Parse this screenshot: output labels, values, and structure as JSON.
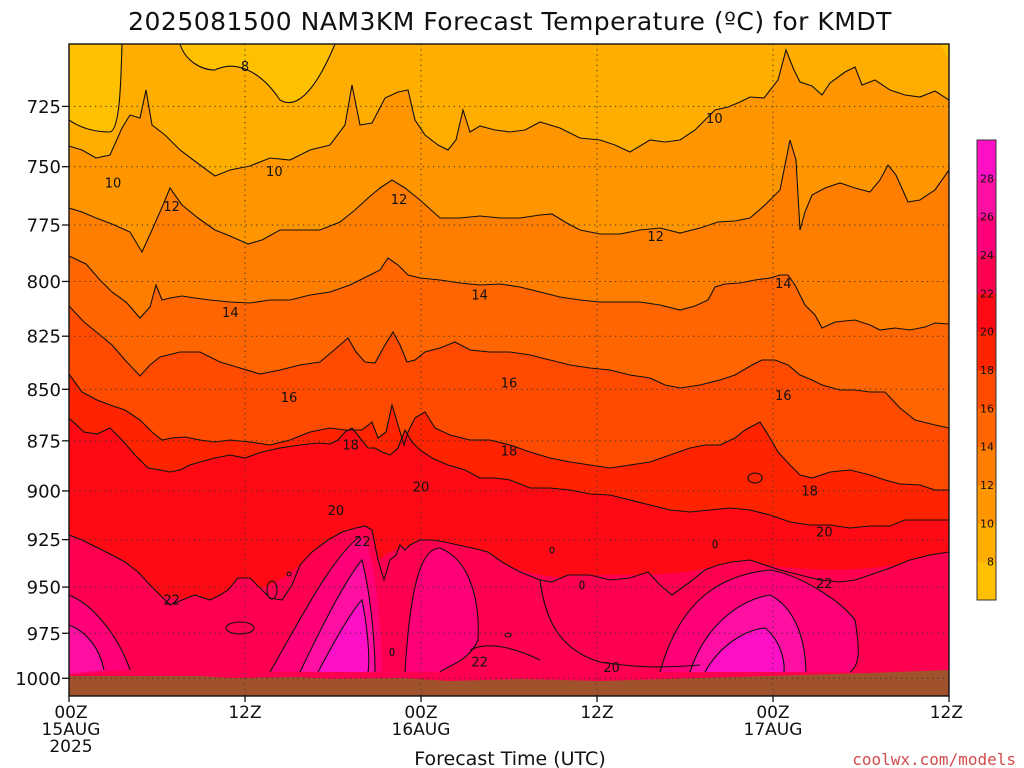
{
  "chart_data": {
    "type": "heatmap",
    "title": "2025081500 NAM3KM Forecast Temperature (ºC) for KMDT",
    "xlabel": "Forecast Time (UTC)",
    "ylabel": "",
    "x_ticks": [
      {
        "hour": 0,
        "lines": [
          "00Z",
          "15AUG",
          "2025"
        ]
      },
      {
        "hour": 12,
        "lines": [
          "12Z"
        ]
      },
      {
        "hour": 24,
        "lines": [
          "00Z",
          "16AUG"
        ]
      },
      {
        "hour": 36,
        "lines": [
          "12Z"
        ]
      },
      {
        "hour": 48,
        "lines": [
          "00Z",
          "17AUG"
        ]
      },
      {
        "hour": 60,
        "lines": [
          "12Z"
        ]
      }
    ],
    "xlim_hours": [
      0,
      60
    ],
    "y_ticks": [
      725,
      750,
      775,
      800,
      825,
      850,
      875,
      900,
      925,
      950,
      975,
      1000
    ],
    "ylim_hpa": [
      1010,
      700
    ],
    "y_scale": "log-pressure",
    "grid": "dotted",
    "contour_interval": 2,
    "colorbar": {
      "placement": "right",
      "levels": [
        6,
        8,
        10,
        12,
        14,
        16,
        18,
        20,
        22,
        24,
        26,
        28,
        30
      ],
      "tick_labels": [
        "8",
        "10",
        "12",
        "14",
        "16",
        "18",
        "20",
        "22",
        "24",
        "26",
        "28"
      ],
      "colors": [
        "#ffc000",
        "#ffae00",
        "#ff9600",
        "#ff7e00",
        "#ff6500",
        "#ff4b00",
        "#ff2300",
        "#ff0a14",
        "#ff0050",
        "#ff0078",
        "#ff10a2",
        "#ff10c6"
      ]
    },
    "contour_labels": [
      {
        "text": "8",
        "hour": 12.0,
        "p": 709
      },
      {
        "text": "10",
        "hour": 3.0,
        "p": 757
      },
      {
        "text": "10",
        "hour": 14.0,
        "p": 752
      },
      {
        "text": "10",
        "hour": 44.0,
        "p": 730
      },
      {
        "text": "12",
        "hour": 7.0,
        "p": 767
      },
      {
        "text": "12",
        "hour": 22.5,
        "p": 764
      },
      {
        "text": "12",
        "hour": 40.0,
        "p": 780
      },
      {
        "text": "14",
        "hour": 11.0,
        "p": 814
      },
      {
        "text": "14",
        "hour": 28.0,
        "p": 806
      },
      {
        "text": "14",
        "hour": 48.7,
        "p": 801
      },
      {
        "text": "16",
        "hour": 15.0,
        "p": 854
      },
      {
        "text": "16",
        "hour": 30.0,
        "p": 847
      },
      {
        "text": "16",
        "hour": 48.7,
        "p": 853
      },
      {
        "text": "18",
        "hour": 19.2,
        "p": 877
      },
      {
        "text": "18",
        "hour": 30.0,
        "p": 880
      },
      {
        "text": "18",
        "hour": 50.5,
        "p": 900
      },
      {
        "text": "20",
        "hour": 18.2,
        "p": 910
      },
      {
        "text": "20",
        "hour": 24.0,
        "p": 898
      },
      {
        "text": "20",
        "hour": 51.5,
        "p": 921
      },
      {
        "text": "20",
        "hour": 37.0,
        "p": 994
      },
      {
        "text": "22",
        "hour": 20.0,
        "p": 926
      },
      {
        "text": "22",
        "hour": 7.0,
        "p": 957
      },
      {
        "text": "22",
        "hour": 51.5,
        "p": 948
      },
      {
        "text": "22",
        "hour": 28.0,
        "p": 991
      }
    ]
  },
  "footer": {
    "credit": "coolwx.com/models"
  }
}
